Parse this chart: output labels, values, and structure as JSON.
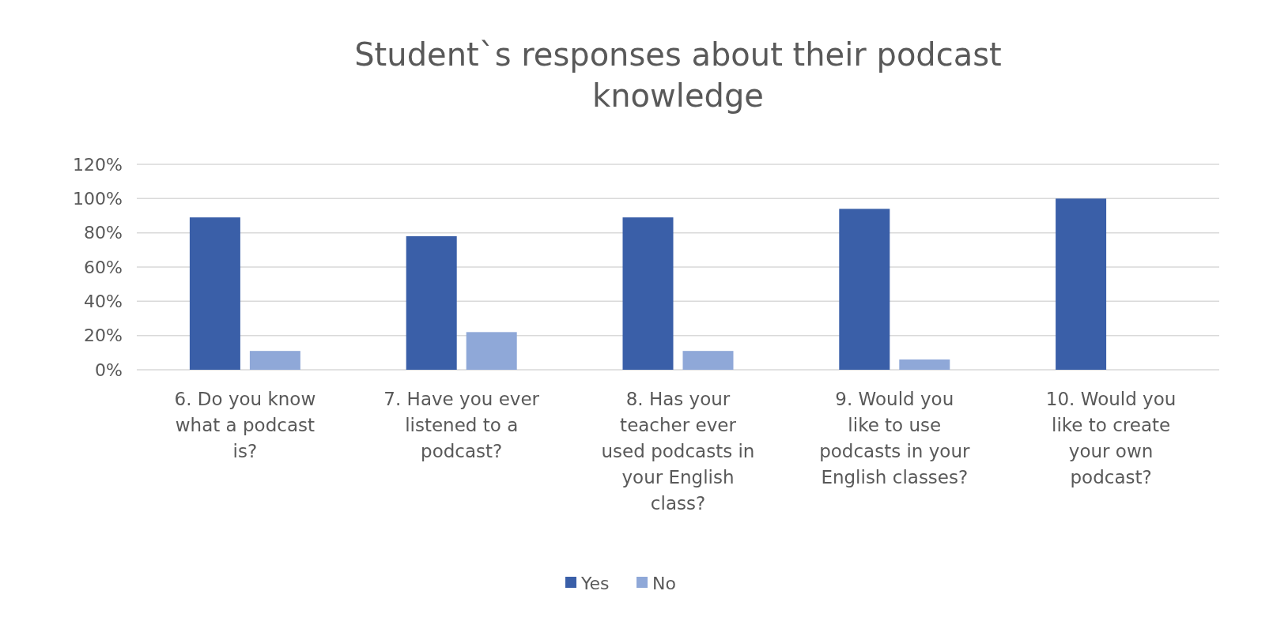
{
  "chart_data": {
    "type": "bar",
    "title": "Student`s responses about their podcast knowledge",
    "categories": [
      "6. Do you know what a podcast is?",
      "7. Have you ever listened to a podcast?",
      "8. Has your teacher ever used podcasts in your English class?",
      "9. Would you like to use podcasts in your English classes?",
      "10. Would you like to create your own podcast?"
    ],
    "series": [
      {
        "name": "Yes",
        "color": "#3a5fa8",
        "values": [
          89,
          78,
          89,
          94,
          100
        ]
      },
      {
        "name": "No",
        "color": "#8fa8d8",
        "values": [
          11,
          22,
          11,
          6,
          0
        ]
      }
    ],
    "ylim": [
      0,
      120
    ],
    "yticks": [
      {
        "value": 0,
        "label": "0%"
      },
      {
        "value": 20,
        "label": "20%"
      },
      {
        "value": 40,
        "label": "40%"
      },
      {
        "value": 60,
        "label": "60%"
      },
      {
        "value": 80,
        "label": "80%"
      },
      {
        "value": 100,
        "label": "100%"
      },
      {
        "value": 120,
        "label": "120%"
      }
    ],
    "grid": "y",
    "legend": "bottom"
  }
}
